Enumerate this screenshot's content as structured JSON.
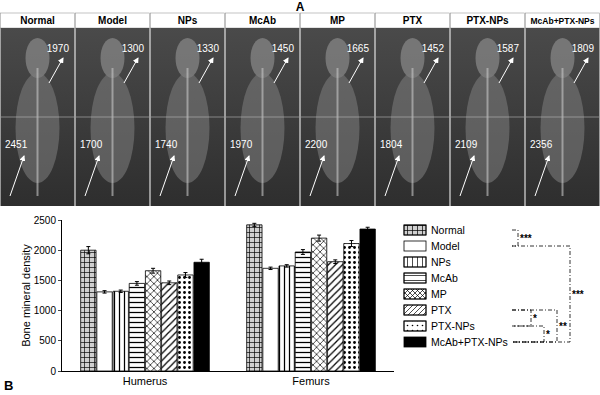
{
  "panel_a": {
    "label": "A",
    "images": [
      {
        "name": "Normal",
        "humerus": 1970,
        "femur": 2451
      },
      {
        "name": "Model",
        "humerus": 1300,
        "femur": 1700
      },
      {
        "name": "NPs",
        "humerus": 1330,
        "femur": 1740
      },
      {
        "name": "McAb",
        "humerus": 1450,
        "femur": 1970
      },
      {
        "name": "MP",
        "humerus": 1665,
        "femur": 2200
      },
      {
        "name": "PTX",
        "humerus": 1452,
        "femur": 1804
      },
      {
        "name": "PTX-NPs",
        "humerus": 1587,
        "femur": 2109
      },
      {
        "name": "McAb+PTX-NPs",
        "humerus": 1809,
        "femur": 2356
      }
    ]
  },
  "chart_data": {
    "label": "B",
    "type": "bar",
    "y_label": "Bone mineral density",
    "categories": [
      "Humerus",
      "Femurs"
    ],
    "ylim": [
      0,
      2500
    ],
    "yticks": [
      0,
      500,
      1000,
      1500,
      2000,
      2500
    ],
    "grid": false,
    "series": [
      {
        "name": "Normal",
        "color": "#d0d0d0",
        "marker": "dense",
        "values": [
          2000,
          2420
        ],
        "errors": [
          60,
          25
        ]
      },
      {
        "name": "Model",
        "color": "#ffffff",
        "marker": "none",
        "values": [
          1310,
          1700
        ],
        "errors": [
          20,
          20
        ]
      },
      {
        "name": "NPs",
        "color": "#ffffff",
        "marker": "vertical",
        "values": [
          1320,
          1740
        ],
        "errors": [
          20,
          20
        ]
      },
      {
        "name": "McAb",
        "color": "#ffffff",
        "marker": "horizontal",
        "values": [
          1450,
          1970
        ],
        "errors": [
          30,
          40
        ]
      },
      {
        "name": "MP",
        "color": "#ffffff",
        "marker": "cross",
        "values": [
          1660,
          2200
        ],
        "errors": [
          40,
          50
        ]
      },
      {
        "name": "PTX",
        "color": "#ffffff",
        "marker": "diagonal",
        "values": [
          1460,
          1810
        ],
        "errors": [
          30,
          30
        ]
      },
      {
        "name": "PTX-NPs",
        "color": "#ffffff",
        "marker": "dots",
        "values": [
          1590,
          2110
        ],
        "errors": [
          40,
          50
        ]
      },
      {
        "name": "McAb+PTX-NPs",
        "color": "#000000",
        "marker": "solid",
        "values": [
          1800,
          2350
        ],
        "errors": [
          50,
          30
        ]
      }
    ],
    "significance": [
      {
        "groups": [
          "Normal",
          "Model"
        ],
        "label": "***"
      },
      {
        "groups": [
          "PTX",
          "PTX-NPs"
        ],
        "label": "*"
      },
      {
        "groups": [
          "PTX-NPs",
          "McAb+PTX-NPs"
        ],
        "label": "*"
      },
      {
        "groups": [
          "PTX",
          "McAb+PTX-NPs"
        ],
        "label": "**"
      },
      {
        "groups": [
          "Model",
          "McAb+PTX-NPs"
        ],
        "label": "***"
      }
    ]
  }
}
